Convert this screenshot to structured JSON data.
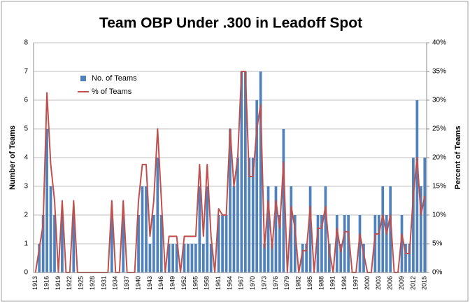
{
  "chart_data": {
    "type": "bar",
    "title": "Team OBP Under .300 in Leadoff Spot",
    "y_label": "Number of Teams",
    "y2_label": "Percent of Teams",
    "categories": [
      "1913",
      null,
      null,
      "1916",
      null,
      null,
      "1919",
      null,
      null,
      "1922",
      null,
      null,
      "1925",
      null,
      null,
      "1928",
      null,
      null,
      "1931",
      null,
      null,
      "1934",
      null,
      null,
      "1937",
      null,
      null,
      "1940",
      null,
      null,
      "1943",
      null,
      null,
      "1946",
      null,
      null,
      "1949",
      null,
      null,
      "1952",
      null,
      null,
      "1955",
      null,
      null,
      "1958",
      null,
      null,
      "1961",
      null,
      null,
      "1964",
      null,
      null,
      "1967",
      null,
      null,
      "1970",
      null,
      null,
      "1973",
      null,
      null,
      "1976",
      null,
      null,
      "1979",
      null,
      null,
      "1982",
      null,
      null,
      "1985",
      null,
      null,
      "1988",
      null,
      null,
      "1991",
      null,
      null,
      "1994",
      null,
      null,
      "1997",
      null,
      null,
      "2000",
      null,
      null,
      "2003",
      null,
      null,
      "2006",
      null,
      null,
      "2009",
      null,
      null,
      "2012",
      null,
      null,
      "2015"
    ],
    "series": [
      {
        "name": "No. of Teams",
        "color": "#4f81bd",
        "kind": "bar",
        "values": [
          0,
          1,
          2,
          5,
          3,
          2,
          0,
          2,
          0,
          0,
          2,
          0,
          0,
          0,
          0,
          0,
          0,
          0,
          0,
          0,
          2,
          0,
          0,
          2,
          0,
          0,
          0,
          2,
          3,
          3,
          1,
          2,
          4,
          2,
          0,
          1,
          1,
          1,
          0,
          1,
          1,
          1,
          1,
          3,
          1,
          3,
          1,
          0,
          2,
          2,
          2,
          5,
          3,
          4,
          7,
          7,
          4,
          4,
          6,
          7,
          1,
          3,
          1,
          3,
          2,
          5,
          0,
          3,
          2,
          0,
          1,
          1,
          3,
          0,
          2,
          2,
          3,
          1,
          0,
          2,
          1,
          2,
          2,
          0,
          0,
          2,
          1,
          0,
          0,
          2,
          2,
          3,
          2,
          3,
          0,
          0,
          2,
          1,
          1,
          4,
          6,
          3,
          4
        ]
      },
      {
        "name": "% of Teams",
        "color": "#c0504d",
        "kind": "line",
        "axis": "y2",
        "values": [
          0,
          4.2,
          8.3,
          31.3,
          18.8,
          12.5,
          0,
          12.5,
          0,
          0,
          12.5,
          0,
          0,
          0,
          0,
          0,
          0,
          0,
          0,
          0,
          12.5,
          0,
          0,
          12.5,
          0,
          0,
          0,
          12.5,
          18.8,
          18.8,
          6.3,
          12.5,
          25,
          12.5,
          0,
          6.3,
          6.3,
          6.3,
          0,
          6.3,
          6.3,
          6.3,
          6.3,
          18.8,
          6.3,
          18.8,
          6.3,
          0,
          11.1,
          10,
          10,
          25,
          15,
          20,
          35,
          35,
          16.7,
          16.7,
          25,
          29.2,
          4.2,
          12.5,
          4.2,
          12.5,
          7.7,
          19.2,
          0,
          11.5,
          7.7,
          0,
          3.8,
          3.8,
          11.5,
          0,
          7.7,
          7.7,
          11.5,
          3.8,
          0,
          7.7,
          3.6,
          7.1,
          7.1,
          0,
          0,
          6.7,
          3.3,
          0,
          0,
          6.7,
          6.7,
          10,
          6.7,
          10,
          0,
          0,
          6.7,
          3.3,
          3.3,
          13.3,
          20,
          10,
          13.3
        ]
      }
    ],
    "ylim": [
      0,
      8
    ],
    "yticks": [
      0,
      1,
      2,
      3,
      4,
      5,
      6,
      7,
      8
    ],
    "y2lim": [
      0,
      40
    ],
    "y2ticks": [
      {
        "value": 0,
        "label": "0%"
      },
      {
        "value": 5,
        "label": "5%"
      },
      {
        "value": 10,
        "label": "10%"
      },
      {
        "value": 15,
        "label": "15%"
      },
      {
        "value": 20,
        "label": "20%"
      },
      {
        "value": 25,
        "label": "25%"
      },
      {
        "value": 30,
        "label": "30%"
      },
      {
        "value": 35,
        "label": "35%"
      },
      {
        "value": 40,
        "label": "40%"
      }
    ],
    "grid": true,
    "legend": "upper-left"
  }
}
